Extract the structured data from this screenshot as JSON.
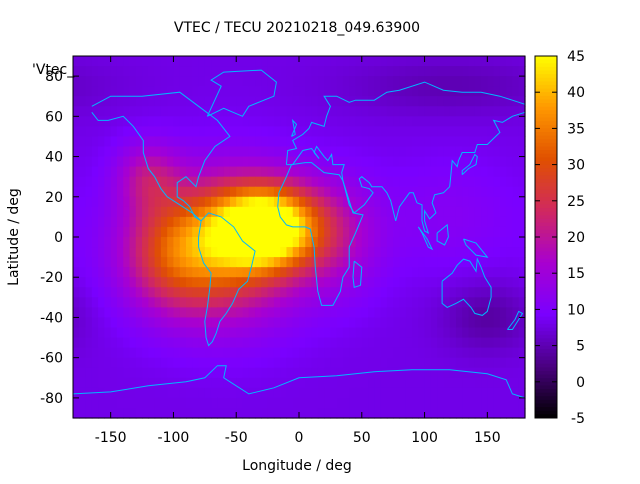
{
  "chart_data": {
    "type": "heatmap",
    "title": "VTEC / TECU 20210218_049.63900",
    "key_label": "'Vtec_",
    "xlabel": "Longitude / deg",
    "ylabel": "Latitude / deg",
    "xlim": [
      -180,
      180
    ],
    "ylim": [
      -90,
      90
    ],
    "x_ticks": [
      -150,
      -100,
      -50,
      0,
      50,
      100,
      150
    ],
    "y_ticks": [
      -80,
      -60,
      -40,
      -20,
      0,
      20,
      40,
      60,
      80
    ],
    "colorbar": {
      "min": -5,
      "max": 45,
      "ticks": [
        -5,
        0,
        5,
        10,
        15,
        20,
        25,
        30,
        35,
        40,
        45
      ],
      "palette": [
        "#000000",
        "#4a0080",
        "#7a00ff",
        "#a800d0",
        "#d02860",
        "#e05000",
        "#ff9800",
        "#ffff00"
      ]
    },
    "background_value": 8,
    "hotspots": [
      {
        "lon": -25,
        "lat": 5,
        "value": 45,
        "spread_lon": 28,
        "spread_lat": 14
      },
      {
        "lon": -55,
        "lat": -5,
        "value": 29,
        "spread_lon": 40,
        "spread_lat": 25
      },
      {
        "lon": -100,
        "lat": -8,
        "value": 24,
        "spread_lon": 30,
        "spread_lat": 20
      },
      {
        "lon": -120,
        "lat": 30,
        "value": 18,
        "spread_lon": 18,
        "spread_lat": 12
      },
      {
        "lon": 30,
        "lat": 0,
        "value": 16,
        "spread_lon": 25,
        "spread_lat": 20
      },
      {
        "lon": 120,
        "lat": 10,
        "value": 11,
        "spread_lon": 40,
        "spread_lat": 20
      },
      {
        "lon": 150,
        "lat": -40,
        "value": 4,
        "spread_lon": 25,
        "spread_lat": 12
      },
      {
        "lon": 120,
        "lat": 75,
        "value": 5,
        "spread_lon": 60,
        "spread_lat": 10
      }
    ]
  }
}
